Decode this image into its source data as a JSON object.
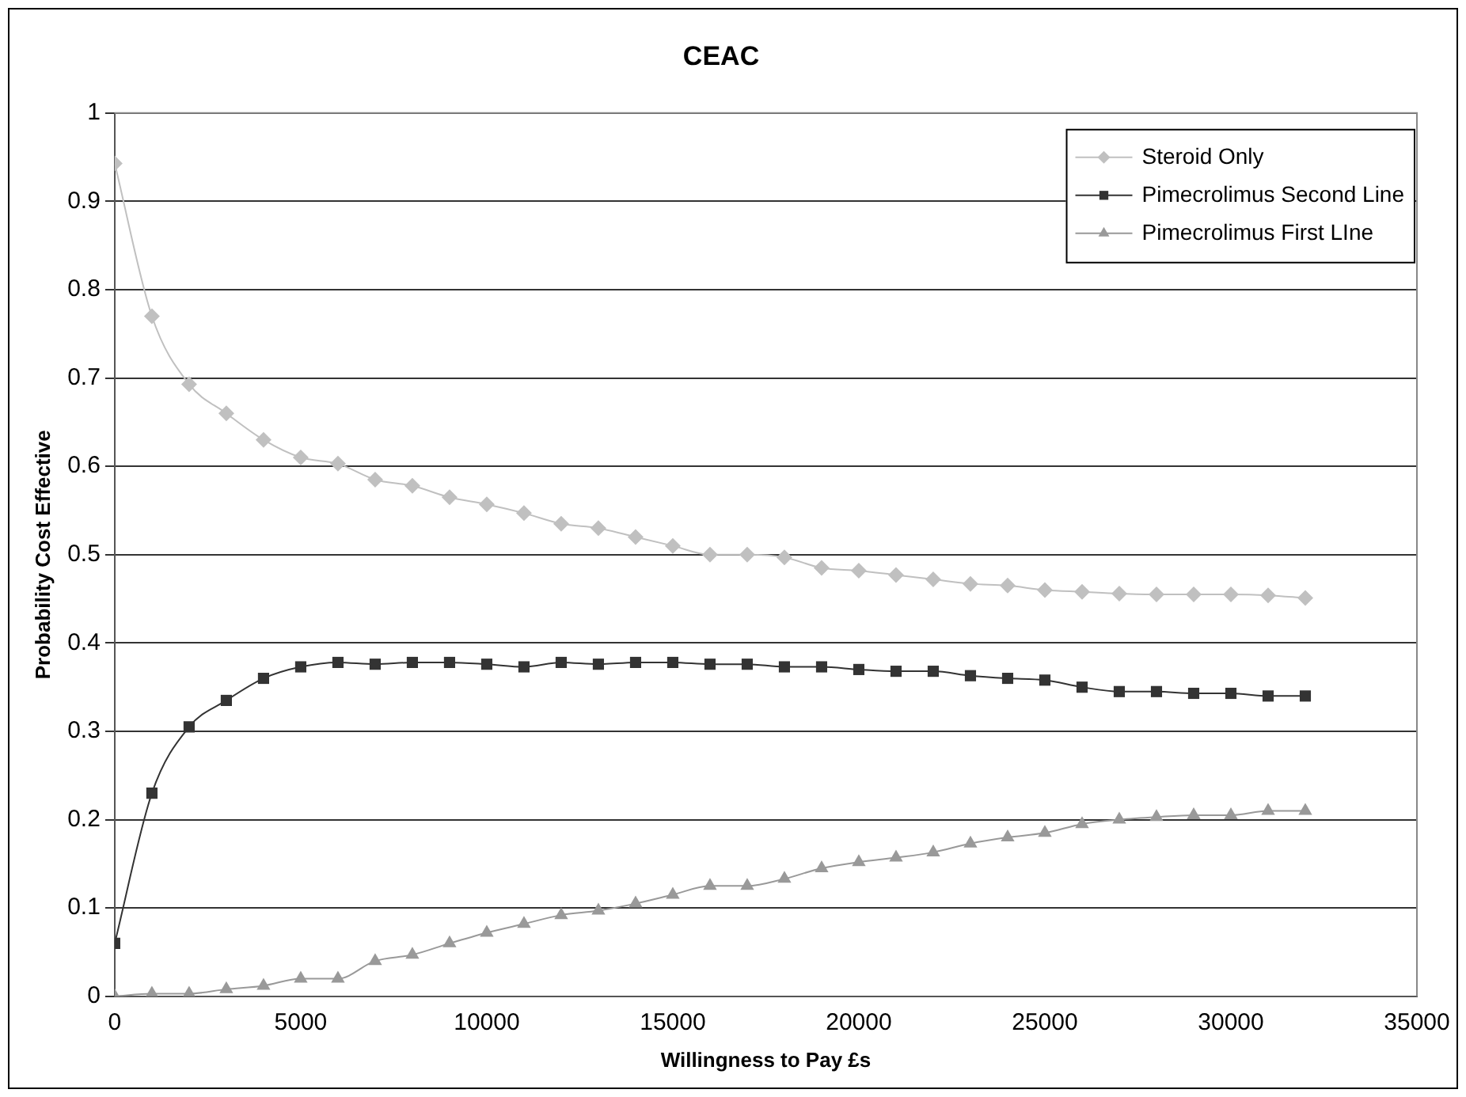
{
  "chart_data": {
    "type": "line",
    "title": "CEAC",
    "xlabel": "Willingness to Pay £s",
    "ylabel": "Probability Cost Effective",
    "x": [
      0,
      1000,
      2000,
      3000,
      4000,
      5000,
      6000,
      7000,
      8000,
      9000,
      10000,
      11000,
      12000,
      13000,
      14000,
      15000,
      16000,
      17000,
      18000,
      19000,
      20000,
      21000,
      22000,
      23000,
      24000,
      25000,
      26000,
      27000,
      28000,
      29000,
      30000,
      31000,
      32000
    ],
    "series": [
      {
        "name": "Steroid Only",
        "color": "#c0c0c0",
        "marker": "diamond",
        "values": [
          0.943,
          0.77,
          0.693,
          0.66,
          0.63,
          0.61,
          0.603,
          0.585,
          0.578,
          0.565,
          0.557,
          0.547,
          0.535,
          0.53,
          0.52,
          0.51,
          0.5,
          0.5,
          0.497,
          0.485,
          0.482,
          0.477,
          0.472,
          0.467,
          0.465,
          0.46,
          0.458,
          0.456,
          0.455,
          0.455,
          0.455,
          0.454,
          0.451
        ]
      },
      {
        "name": "Pimecrolimus Second Line",
        "color": "#333333",
        "marker": "square",
        "values": [
          0.06,
          0.23,
          0.305,
          0.335,
          0.36,
          0.373,
          0.378,
          0.376,
          0.378,
          0.378,
          0.376,
          0.373,
          0.378,
          0.376,
          0.378,
          0.378,
          0.376,
          0.376,
          0.373,
          0.373,
          0.37,
          0.368,
          0.368,
          0.363,
          0.36,
          0.358,
          0.35,
          0.345,
          0.345,
          0.343,
          0.343,
          0.34,
          0.34
        ]
      },
      {
        "name": "Pimecrolimus First LIne",
        "color": "#999999",
        "marker": "triangle",
        "values": [
          0,
          0.003,
          0.003,
          0.008,
          0.012,
          0.02,
          0.02,
          0.04,
          0.047,
          0.06,
          0.072,
          0.082,
          0.092,
          0.097,
          0.105,
          0.115,
          0.125,
          0.125,
          0.133,
          0.145,
          0.152,
          0.157,
          0.163,
          0.173,
          0.18,
          0.185,
          0.195,
          0.2,
          0.203,
          0.205,
          0.205,
          0.21,
          0.21
        ]
      }
    ],
    "xlim": [
      0,
      35000
    ],
    "xticks": [
      0,
      5000,
      10000,
      15000,
      20000,
      25000,
      30000,
      35000
    ],
    "ylim": [
      0,
      1
    ],
    "yticks": [
      0,
      0.1,
      0.2,
      0.3,
      0.4,
      0.5,
      0.6,
      0.7,
      0.8,
      0.9,
      1
    ],
    "grid": "y",
    "legend": "top right",
    "line_style": "solid"
  }
}
